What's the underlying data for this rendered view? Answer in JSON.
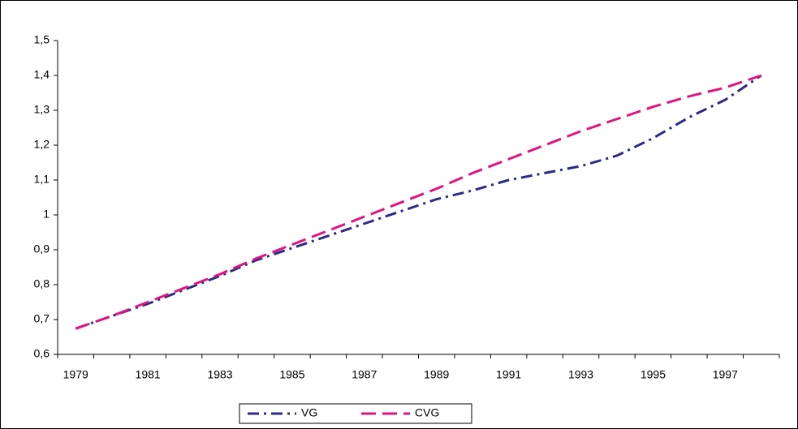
{
  "chart_data": {
    "type": "line",
    "categories": [
      "1979",
      null,
      "1981",
      null,
      "1983",
      null,
      "1985",
      null,
      "1987",
      null,
      "1989",
      null,
      "1991",
      null,
      "1993",
      null,
      "1995",
      null,
      "1997",
      null
    ],
    "series": [
      {
        "name": "VG",
        "color": "#2b2a85",
        "dash": "dashdot",
        "values": [
          0.674,
          0.71,
          0.745,
          0.785,
          0.825,
          0.87,
          0.905,
          0.94,
          0.975,
          1.01,
          1.045,
          1.07,
          1.1,
          1.12,
          1.14,
          1.17,
          1.22,
          1.28,
          1.33,
          1.4
        ]
      },
      {
        "name": "CVG",
        "color": "#e0147f",
        "dash": "dash",
        "values": [
          0.674,
          0.71,
          0.75,
          0.79,
          0.83,
          0.875,
          0.915,
          0.955,
          0.995,
          1.035,
          1.075,
          1.12,
          1.16,
          1.2,
          1.24,
          1.275,
          1.31,
          1.34,
          1.365,
          1.4
        ]
      }
    ],
    "ylim": [
      0.6,
      1.5
    ],
    "yticks": [
      {
        "value": 0.6,
        "label": "0,6"
      },
      {
        "value": 0.7,
        "label": "0,7"
      },
      {
        "value": 0.8,
        "label": "0,8"
      },
      {
        "value": 0.9,
        "label": "0,9"
      },
      1,
      {
        "value": 1.1,
        "label": "1,1"
      },
      {
        "value": 1.2,
        "label": "1,2"
      },
      {
        "value": 1.3,
        "label": "1,3"
      },
      {
        "value": 1.4,
        "label": "1,4"
      },
      {
        "value": 1.5,
        "label": "1,5"
      }
    ],
    "legend": "bottom"
  }
}
